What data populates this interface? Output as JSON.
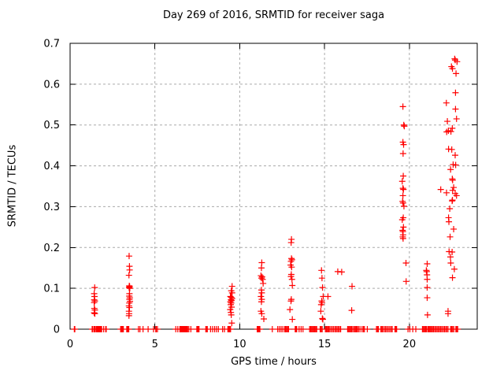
{
  "chart_data": {
    "type": "scatter",
    "title": "Day 269 of 2016, SRMTID for receiver saga",
    "xlabel": "GPS time / hours",
    "ylabel": "SRMTID / TECUs",
    "xlim": [
      0,
      24
    ],
    "ylim": [
      0,
      0.7
    ],
    "xticks": [
      0,
      5,
      10,
      15,
      20
    ],
    "yticks": [
      0,
      0.1,
      0.2,
      0.3,
      0.4,
      0.5,
      0.6,
      0.7
    ],
    "grid": true,
    "legend": "none",
    "marker": "plus",
    "marker_color": "#ff0000",
    "series": [
      {
        "name": "SRMTID",
        "points": [
          [
            1.45,
            0.102
          ],
          [
            1.42,
            0.087
          ],
          [
            1.44,
            0.08
          ],
          [
            1.42,
            0.072
          ],
          [
            1.46,
            0.069
          ],
          [
            1.42,
            0.065
          ],
          [
            1.43,
            0.051
          ],
          [
            1.46,
            0.047
          ],
          [
            1.42,
            0.04
          ],
          [
            1.46,
            0.038
          ],
          [
            3.48,
            0.179
          ],
          [
            3.5,
            0.154
          ],
          [
            3.51,
            0.145
          ],
          [
            3.47,
            0.132
          ],
          [
            3.49,
            0.106
          ],
          [
            3.51,
            0.104
          ],
          [
            3.48,
            0.102
          ],
          [
            3.52,
            0.1
          ],
          [
            3.5,
            0.087
          ],
          [
            3.49,
            0.081
          ],
          [
            3.52,
            0.077
          ],
          [
            3.5,
            0.073
          ],
          [
            3.53,
            0.068
          ],
          [
            3.49,
            0.064
          ],
          [
            3.47,
            0.057
          ],
          [
            3.5,
            0.053
          ],
          [
            3.47,
            0.044
          ],
          [
            3.48,
            0.038
          ],
          [
            3.47,
            0.033
          ],
          [
            9.55,
            0.105
          ],
          [
            9.5,
            0.094
          ],
          [
            9.55,
            0.089
          ],
          [
            9.45,
            0.08
          ],
          [
            9.5,
            0.078
          ],
          [
            9.55,
            0.075
          ],
          [
            9.48,
            0.072
          ],
          [
            9.52,
            0.07
          ],
          [
            9.45,
            0.067
          ],
          [
            9.5,
            0.064
          ],
          [
            9.47,
            0.06
          ],
          [
            9.52,
            0.054
          ],
          [
            9.44,
            0.048
          ],
          [
            9.48,
            0.041
          ],
          [
            9.5,
            0.035
          ],
          [
            9.53,
            0.015
          ],
          [
            11.3,
            0.163
          ],
          [
            11.28,
            0.15
          ],
          [
            11.25,
            0.131
          ],
          [
            11.32,
            0.128
          ],
          [
            11.28,
            0.125
          ],
          [
            11.35,
            0.122
          ],
          [
            11.38,
            0.112
          ],
          [
            11.28,
            0.096
          ],
          [
            11.3,
            0.089
          ],
          [
            11.25,
            0.08
          ],
          [
            11.3,
            0.073
          ],
          [
            11.28,
            0.067
          ],
          [
            11.25,
            0.044
          ],
          [
            11.3,
            0.038
          ],
          [
            11.42,
            0.025
          ],
          [
            13.05,
            0.22
          ],
          [
            13.03,
            0.212
          ],
          [
            13.05,
            0.173
          ],
          [
            13.08,
            0.17
          ],
          [
            13.02,
            0.166
          ],
          [
            13.0,
            0.157
          ],
          [
            13.06,
            0.152
          ],
          [
            13.04,
            0.134
          ],
          [
            13.02,
            0.129
          ],
          [
            13.08,
            0.122
          ],
          [
            13.1,
            0.107
          ],
          [
            13.04,
            0.073
          ],
          [
            13.02,
            0.069
          ],
          [
            12.96,
            0.048
          ],
          [
            13.1,
            0.024
          ],
          [
            14.82,
            0.144
          ],
          [
            14.85,
            0.125
          ],
          [
            14.88,
            0.102
          ],
          [
            14.92,
            0.08
          ],
          [
            15.2,
            0.08
          ],
          [
            14.83,
            0.069
          ],
          [
            14.85,
            0.065
          ],
          [
            14.8,
            0.06
          ],
          [
            14.78,
            0.044
          ],
          [
            14.87,
            0.026
          ],
          [
            14.9,
            0.024
          ],
          [
            15.78,
            0.141
          ],
          [
            16.01,
            0.14
          ],
          [
            16.62,
            0.105
          ],
          [
            16.6,
            0.046
          ],
          [
            19.8,
            0.162
          ],
          [
            19.81,
            0.117
          ],
          [
            19.62,
            0.545
          ],
          [
            19.67,
            0.5
          ],
          [
            19.7,
            0.497
          ],
          [
            19.62,
            0.458
          ],
          [
            19.66,
            0.452
          ],
          [
            19.63,
            0.43
          ],
          [
            19.64,
            0.375
          ],
          [
            19.58,
            0.362
          ],
          [
            19.62,
            0.345
          ],
          [
            19.65,
            0.342
          ],
          [
            19.62,
            0.327
          ],
          [
            19.6,
            0.313
          ],
          [
            19.63,
            0.309
          ],
          [
            19.68,
            0.301
          ],
          [
            19.64,
            0.273
          ],
          [
            19.58,
            0.268
          ],
          [
            19.65,
            0.25
          ],
          [
            19.6,
            0.242
          ],
          [
            19.62,
            0.239
          ],
          [
            19.63,
            0.231
          ],
          [
            19.61,
            0.226
          ],
          [
            19.63,
            0.222
          ],
          [
            21.05,
            0.16
          ],
          [
            21.0,
            0.144
          ],
          [
            21.02,
            0.141
          ],
          [
            21.04,
            0.133
          ],
          [
            21.05,
            0.122
          ],
          [
            21.05,
            0.102
          ],
          [
            21.05,
            0.077
          ],
          [
            21.07,
            0.035
          ],
          [
            22.67,
            0.662
          ],
          [
            22.7,
            0.659
          ],
          [
            22.81,
            0.655
          ],
          [
            22.48,
            0.643
          ],
          [
            22.54,
            0.638
          ],
          [
            22.75,
            0.626
          ],
          [
            22.72,
            0.579
          ],
          [
            22.18,
            0.554
          ],
          [
            22.72,
            0.539
          ],
          [
            22.78,
            0.515
          ],
          [
            22.24,
            0.509
          ],
          [
            22.53,
            0.492
          ],
          [
            22.3,
            0.486
          ],
          [
            22.45,
            0.484
          ],
          [
            22.2,
            0.483
          ],
          [
            22.31,
            0.441
          ],
          [
            22.5,
            0.44
          ],
          [
            22.7,
            0.426
          ],
          [
            22.58,
            0.403
          ],
          [
            22.73,
            0.402
          ],
          [
            22.43,
            0.391
          ],
          [
            22.53,
            0.368
          ],
          [
            22.55,
            0.365
          ],
          [
            22.61,
            0.347
          ],
          [
            21.85,
            0.342
          ],
          [
            22.55,
            0.34
          ],
          [
            22.19,
            0.334
          ],
          [
            22.7,
            0.332
          ],
          [
            22.78,
            0.327
          ],
          [
            22.54,
            0.316
          ],
          [
            22.52,
            0.314
          ],
          [
            22.38,
            0.295
          ],
          [
            22.31,
            0.273
          ],
          [
            22.33,
            0.263
          ],
          [
            22.61,
            0.245
          ],
          [
            22.4,
            0.226
          ],
          [
            22.34,
            0.19
          ],
          [
            22.52,
            0.189
          ],
          [
            22.42,
            0.177
          ],
          [
            22.44,
            0.162
          ],
          [
            22.65,
            0.147
          ],
          [
            22.54,
            0.126
          ],
          [
            22.28,
            0.044
          ],
          [
            22.28,
            0.038
          ]
        ],
        "zero_value_times": [
          0.25,
          0.28,
          1.3,
          1.34,
          1.42,
          1.45,
          1.48,
          1.55,
          1.58,
          1.62,
          1.66,
          1.7,
          1.74,
          1.78,
          1.82,
          1.86,
          1.98,
          2.1,
          2.13,
          2.98,
          3.02,
          3.06,
          3.1,
          3.14,
          3.34,
          3.38,
          3.42,
          3.46,
          4.03,
          4.12,
          4.3,
          4.6,
          4.92,
          5.05,
          5.08,
          5.15,
          6.23,
          6.35,
          6.47,
          6.51,
          6.55,
          6.59,
          6.63,
          6.67,
          6.71,
          6.75,
          6.79,
          6.84,
          6.89,
          6.93,
          7.0,
          7.12,
          7.47,
          7.51,
          7.56,
          7.6,
          8.0,
          8.03,
          8.09,
          8.28,
          8.4,
          8.52,
          8.63,
          8.74,
          8.99,
          9.1,
          9.3,
          9.34,
          9.38,
          9.42,
          9.46,
          11.03,
          11.07,
          11.11,
          11.15,
          11.19,
          11.92,
          12.24,
          12.34,
          12.44,
          12.54,
          12.65,
          12.7,
          12.76,
          12.82,
          12.88,
          13.27,
          13.31,
          13.36,
          13.5,
          13.62,
          13.73,
          14.12,
          14.18,
          14.24,
          14.3,
          14.36,
          14.42,
          14.48,
          14.54,
          14.74,
          14.8,
          14.86,
          15.05,
          15.11,
          15.17,
          15.23,
          15.28,
          15.36,
          15.44,
          15.52,
          15.6,
          15.67,
          15.74,
          15.81,
          15.88,
          15.95,
          16.36,
          16.42,
          16.48,
          16.54,
          16.6,
          16.67,
          16.75,
          16.81,
          16.87,
          16.93,
          17.0,
          17.09,
          17.21,
          17.29,
          17.35,
          17.52,
          18.06,
          18.12,
          18.18,
          18.32,
          18.38,
          18.44,
          18.53,
          18.6,
          18.68,
          18.76,
          18.84,
          18.92,
          18.99,
          19.15,
          19.2,
          19.25,
          19.92,
          20.03,
          20.2,
          20.38,
          20.77,
          20.83,
          20.89,
          20.95,
          21.0,
          21.08,
          21.14,
          21.2,
          21.26,
          21.32,
          21.39,
          21.43,
          21.5,
          21.57,
          21.64,
          21.71,
          21.78,
          21.85,
          21.92,
          22.0,
          22.07,
          22.14,
          22.21,
          22.28,
          22.43,
          22.49,
          22.55,
          22.62,
          22.74,
          22.79,
          22.85
        ]
      }
    ],
    "colors": {
      "marker": "#ff0000",
      "border": "#000000",
      "grid": "#aaaaaa",
      "background": "#ffffff"
    }
  }
}
